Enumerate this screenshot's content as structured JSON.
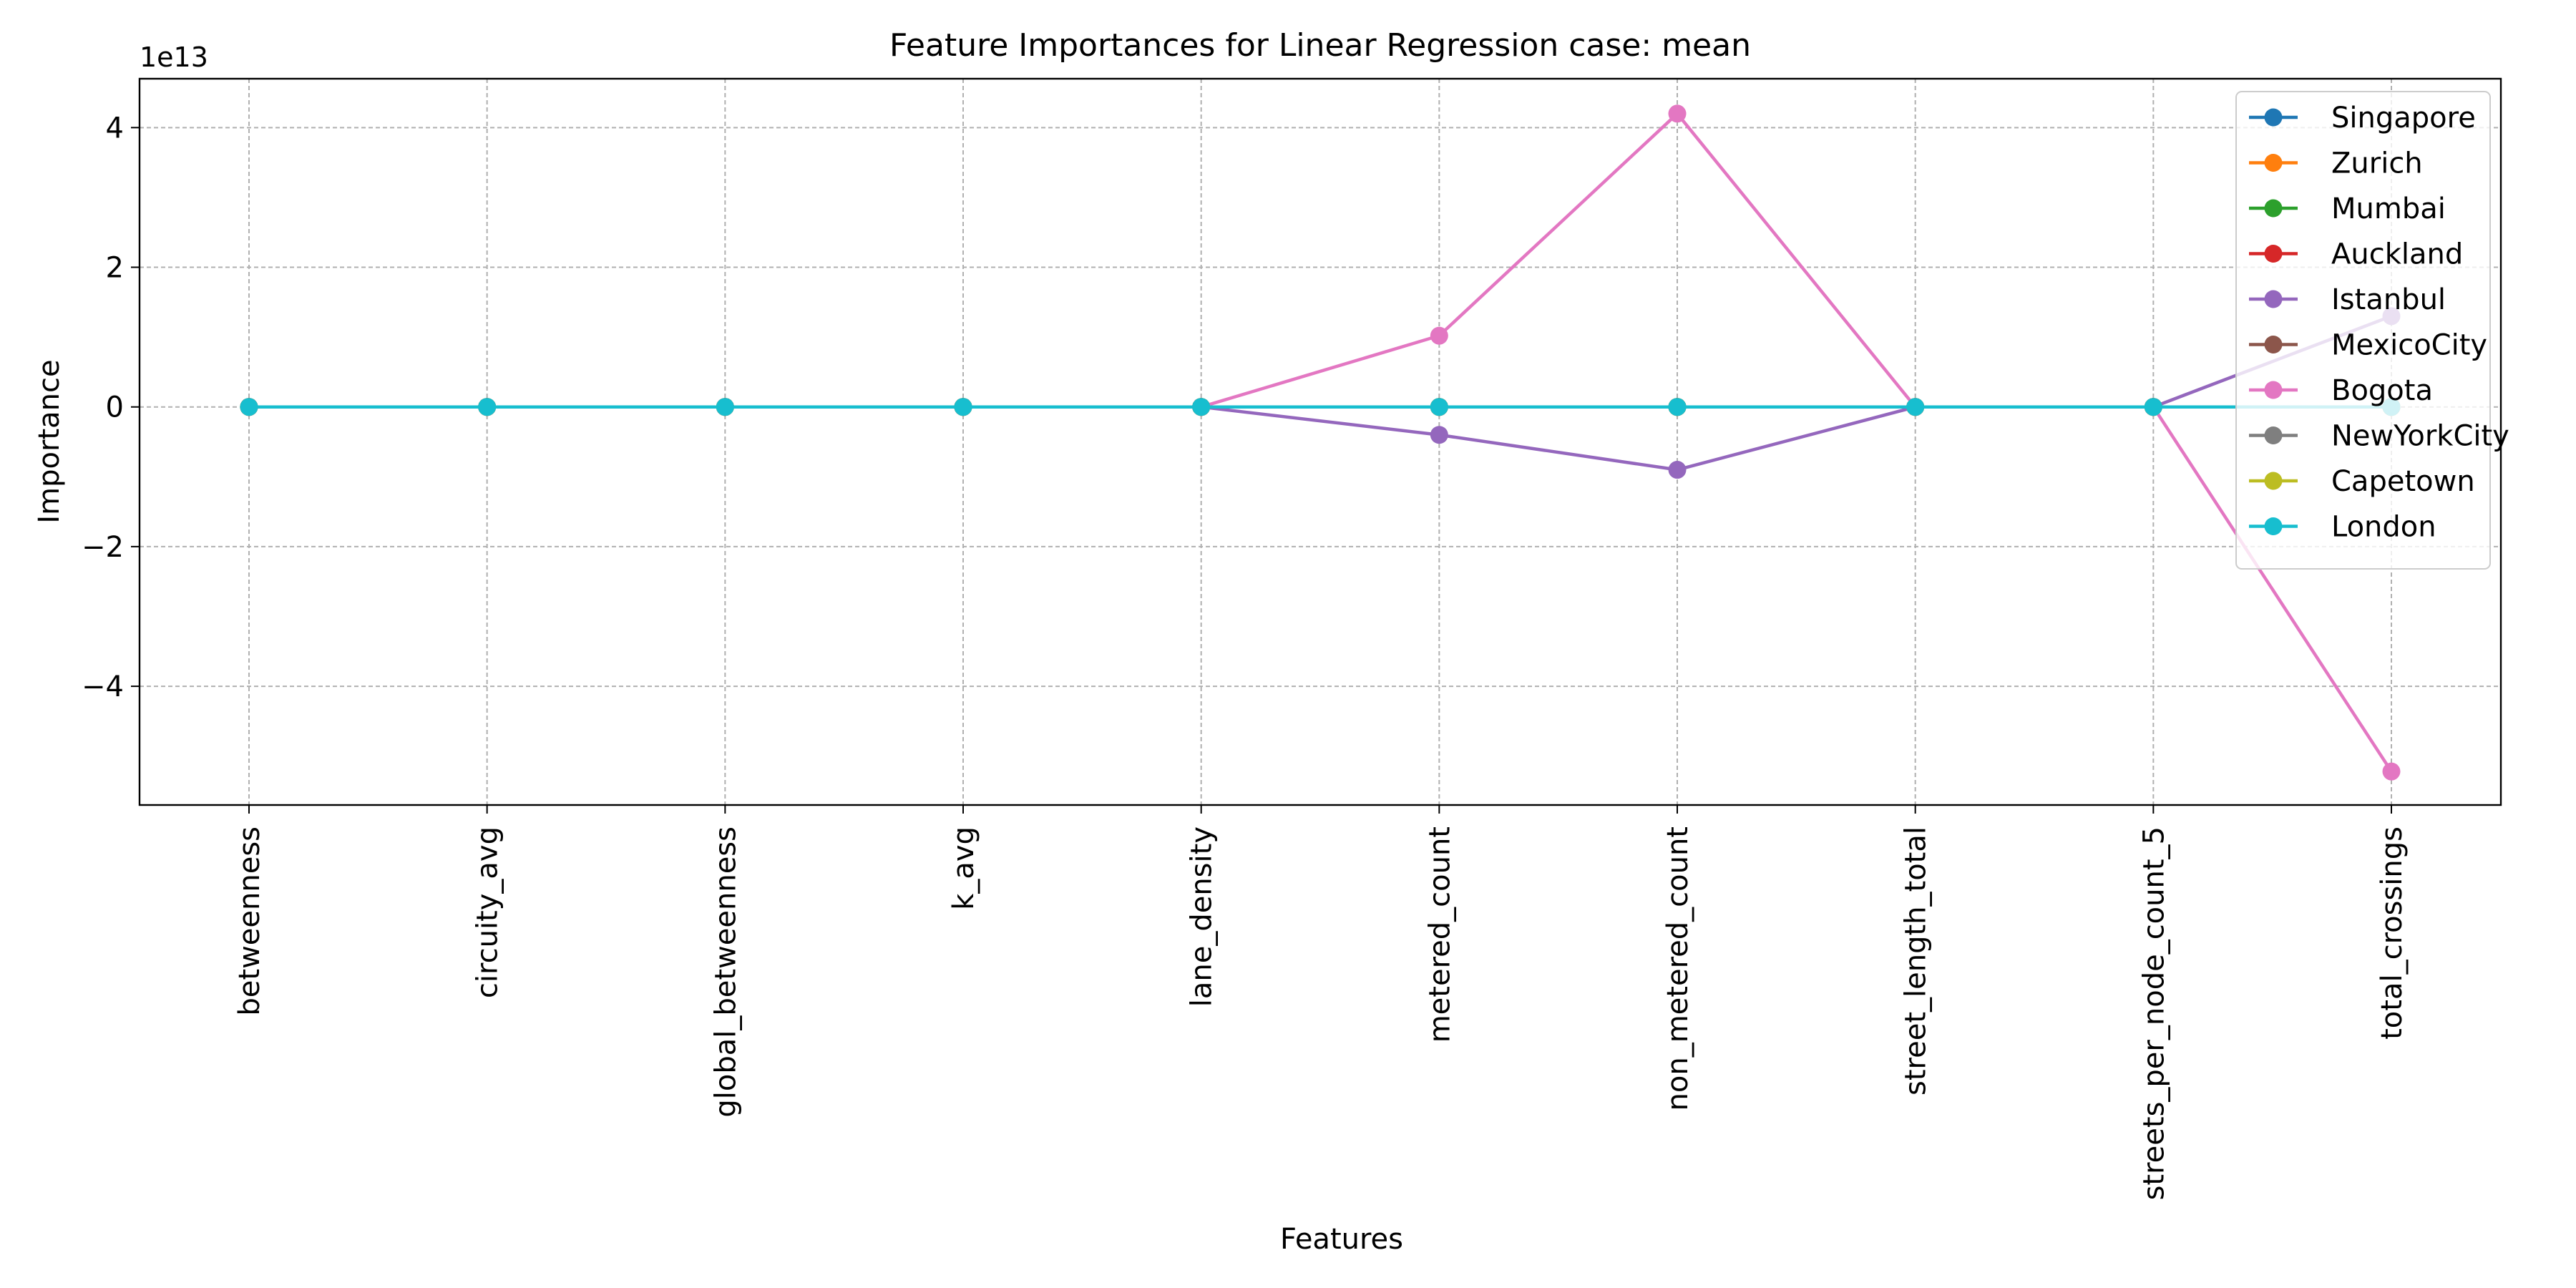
{
  "chart_data": {
    "type": "line",
    "title": "Feature Importances for Linear Regression case: mean",
    "xlabel": "Features",
    "ylabel": "Importance",
    "y_offset_label": "1e13",
    "y_scale": 10000000000000.0,
    "categories": [
      "betweenness",
      "circuity_avg",
      "global_betweenness",
      "k_avg",
      "lane_density",
      "metered_count",
      "non_metered_count",
      "street_length_total",
      "streets_per_node_count_5",
      "total_crossings"
    ],
    "ylim": [
      -5.7,
      4.7
    ],
    "yticks": [
      -4,
      -2,
      0,
      2,
      4
    ],
    "ytick_labels": [
      "−4",
      "−2",
      "0",
      "2",
      "4"
    ],
    "grid": true,
    "legend_position": "top-right",
    "series": [
      {
        "name": "Singapore",
        "color": "#1f77b4",
        "values": [
          0,
          0,
          0,
          0,
          0,
          0,
          0,
          0,
          0,
          0
        ]
      },
      {
        "name": "Zurich",
        "color": "#ff7f0e",
        "values": [
          0,
          0,
          0,
          0,
          0,
          0,
          0,
          0,
          0,
          0
        ]
      },
      {
        "name": "Mumbai",
        "color": "#2ca02c",
        "values": [
          0,
          0,
          0,
          0,
          0,
          0,
          0,
          0,
          0,
          0
        ]
      },
      {
        "name": "Auckland",
        "color": "#d62728",
        "values": [
          0,
          0,
          0,
          0,
          0,
          0,
          0,
          0,
          0,
          0
        ]
      },
      {
        "name": "Istanbul",
        "color": "#9467bd",
        "values": [
          0,
          0,
          0,
          0,
          0,
          -0.4,
          -0.9,
          0,
          0,
          1.3
        ]
      },
      {
        "name": "MexicoCity",
        "color": "#8c564b",
        "values": [
          0,
          0,
          0,
          0,
          0,
          0,
          0,
          0,
          0,
          0
        ]
      },
      {
        "name": "Bogota",
        "color": "#e377c2",
        "values": [
          0,
          0,
          0,
          0,
          0,
          1.02,
          4.2,
          0,
          0,
          -5.22
        ]
      },
      {
        "name": "NewYorkCity",
        "color": "#7f7f7f",
        "values": [
          0,
          0,
          0,
          0,
          0,
          0,
          0,
          0,
          0,
          0
        ]
      },
      {
        "name": "Capetown",
        "color": "#bcbd22",
        "values": [
          0,
          0,
          0,
          0,
          0,
          0,
          0,
          0,
          0,
          0
        ]
      },
      {
        "name": "London",
        "color": "#17becf",
        "values": [
          0,
          0,
          0,
          0,
          0,
          0,
          0,
          0,
          0,
          0
        ]
      }
    ]
  }
}
